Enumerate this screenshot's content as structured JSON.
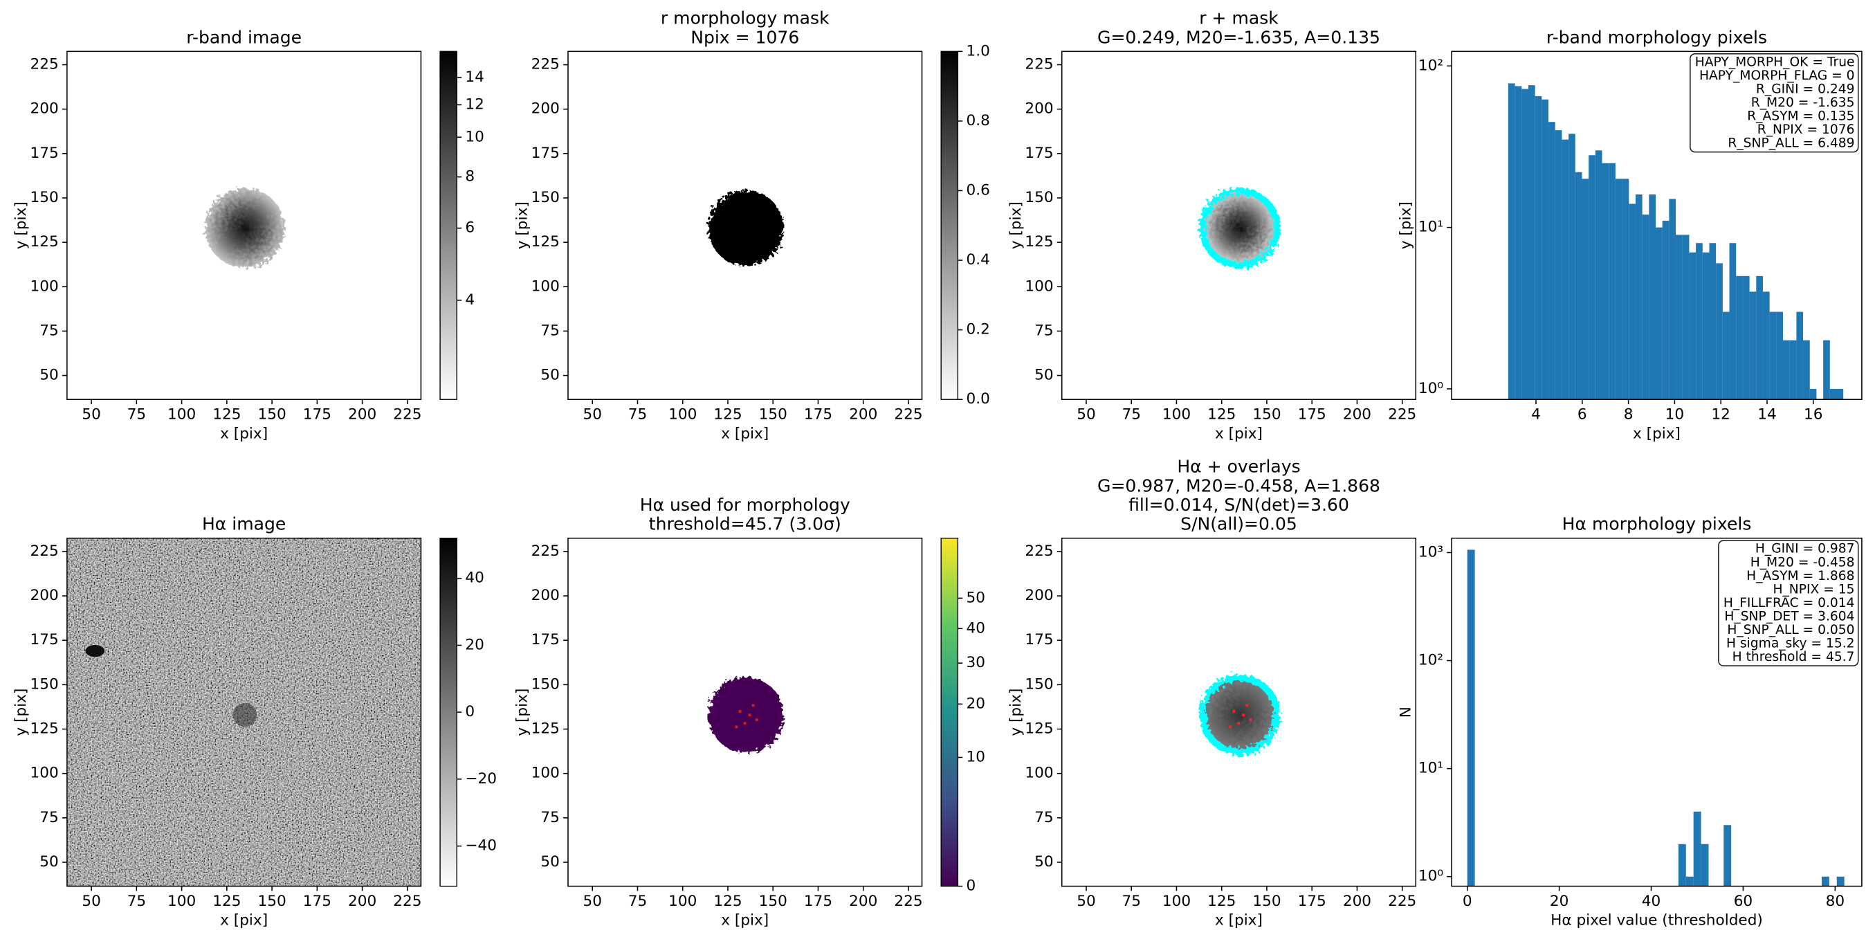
{
  "chart_data": [
    {
      "type": "image",
      "title": [
        "r-band image"
      ],
      "xlabel": "x [pix]",
      "ylabel": "y [pix]",
      "xlim": [
        36.5,
        232.5
      ],
      "ylim": [
        36.5,
        232.5
      ],
      "xticks": [
        50,
        75,
        100,
        125,
        150,
        175,
        200,
        225
      ],
      "yticks": [
        50,
        75,
        100,
        125,
        150,
        175,
        200,
        225
      ],
      "cmap": "gray_r",
      "colorbar": {
        "scale": "log",
        "lim": [
          2.29,
          16.2
        ],
        "ticks": [
          4,
          6,
          8,
          10,
          12,
          14
        ]
      }
    },
    {
      "type": "image",
      "title": [
        "r morphology mask",
        "Npix = 1076"
      ],
      "xlabel": "x [pix]",
      "ylabel": "y [pix]",
      "xlim": [
        36.5,
        232.5
      ],
      "ylim": [
        36.5,
        232.5
      ],
      "xticks": [
        50,
        75,
        100,
        125,
        150,
        175,
        200,
        225
      ],
      "yticks": [
        50,
        75,
        100,
        125,
        150,
        175,
        200,
        225
      ],
      "cmap": "gray_r",
      "colorbar": {
        "scale": "linear",
        "lim": [
          0,
          1
        ],
        "ticks": [
          {
            "value": 0,
            "label": "0.0"
          },
          {
            "value": 0.2,
            "label": "0.2"
          },
          {
            "value": 0.4,
            "label": "0.4"
          },
          {
            "value": 0.6,
            "label": "0.6"
          },
          {
            "value": 0.8,
            "label": "0.8"
          },
          {
            "value": 1,
            "label": "1.0"
          }
        ]
      }
    },
    {
      "type": "image",
      "title": [
        "r + mask",
        "G=0.249, M20=-1.635, A=0.135"
      ],
      "xlabel": "x [pix]",
      "ylabel": "y [pix]",
      "xlim": [
        36.5,
        232.5
      ],
      "ylim": [
        36.5,
        232.5
      ],
      "xticks": [
        50,
        75,
        100,
        125,
        150,
        175,
        200,
        225
      ],
      "yticks": [
        50,
        75,
        100,
        125,
        150,
        175,
        200,
        225
      ],
      "cmap": "gray_r",
      "overlay_color": "#00ffff"
    },
    {
      "type": "histogram",
      "title": [
        "r-band morphology pixels"
      ],
      "xlabel": "x [pix]",
      "ylabel": "y [pix]",
      "bins": [
        2.8,
        3.09,
        3.38,
        3.67,
        3.96,
        4.25,
        4.54,
        4.83,
        5.12,
        5.41,
        5.7,
        5.99,
        6.28,
        6.57,
        6.86,
        7.15,
        7.44,
        7.73,
        8.02,
        8.31,
        8.6,
        8.89,
        9.18,
        9.47,
        9.76,
        10.05,
        10.34,
        10.63,
        10.92,
        11.21,
        11.5,
        11.79,
        12.08,
        12.37,
        12.66,
        12.95,
        13.24,
        13.53,
        13.82,
        14.11,
        14.4,
        14.69,
        14.98,
        15.27,
        15.56,
        15.85,
        16.14,
        16.43,
        16.72,
        17.01,
        17.3
      ],
      "values": [
        78,
        75,
        72,
        76,
        65,
        62,
        45,
        40,
        35,
        38,
        22,
        20,
        28,
        30,
        25,
        25,
        20,
        20,
        14,
        16,
        12,
        16,
        10,
        11,
        15,
        9,
        9,
        7,
        8,
        7,
        8,
        6,
        3,
        8,
        5,
        5,
        4,
        5,
        4,
        3,
        3,
        2,
        2,
        3,
        2,
        1,
        0,
        2,
        1,
        1
      ],
      "color": "#1f77b4",
      "log_y": true,
      "xlim": [
        0.35,
        18.1
      ],
      "ylim": [
        0.86,
        123
      ],
      "xticks": [
        4,
        6,
        8,
        10,
        12,
        14,
        16
      ],
      "yticks": [
        {
          "value": 1,
          "label": "10⁰"
        },
        {
          "value": 10,
          "label": "10¹"
        },
        {
          "value": 100,
          "label": "10²"
        }
      ],
      "annotation_lines": [
        "HAPY_MORPH_OK = True",
        "HAPY_MORPH_FLAG = 0",
        "R_GINI = 0.249",
        "R_M20 = -1.635",
        "R_ASYM = 0.135",
        "R_NPIX = 1076",
        "R_SNP_ALL = 6.489"
      ]
    },
    {
      "type": "image",
      "title": [
        "Hα image"
      ],
      "xlabel": "x [pix]",
      "ylabel": "y [pix]",
      "xlim": [
        36.5,
        232.5
      ],
      "ylim": [
        36.5,
        232.5
      ],
      "xticks": [
        50,
        75,
        100,
        125,
        150,
        175,
        200,
        225
      ],
      "yticks": [
        50,
        75,
        100,
        125,
        150,
        175,
        200,
        225
      ],
      "cmap": "gray_r",
      "colorbar": {
        "scale": "linear",
        "lim": [
          -52,
          52
        ],
        "ticks": [
          {
            "value": -40,
            "label": "−40"
          },
          {
            "value": -20,
            "label": "−20"
          },
          0,
          20,
          40
        ]
      }
    },
    {
      "type": "image",
      "title": [
        "Hα used for morphology",
        "threshold=45.7 (3.0σ)"
      ],
      "xlabel": "x [pix]",
      "ylabel": "y [pix]",
      "xlim": [
        36.5,
        232.5
      ],
      "ylim": [
        36.5,
        232.5
      ],
      "xticks": [
        50,
        75,
        100,
        125,
        150,
        175,
        200,
        225
      ],
      "yticks": [
        50,
        75,
        100,
        125,
        150,
        175,
        200,
        225
      ],
      "cmap": "viridis",
      "colorbar": {
        "scale": "sqrt",
        "lim": [
          0,
          73
        ],
        "ticks": [
          0,
          10,
          20,
          30,
          40,
          50
        ]
      }
    },
    {
      "type": "image",
      "title": [
        "Hα + overlays",
        "G=0.987, M20=-0.458, A=1.868",
        "fill=0.014, S/N(det)=3.60",
        "S/N(all)=0.05"
      ],
      "xlabel": "x [pix]",
      "ylabel": "y [pix]",
      "xlim": [
        36.5,
        232.5
      ],
      "ylim": [
        36.5,
        232.5
      ],
      "xticks": [
        50,
        75,
        100,
        125,
        150,
        175,
        200,
        225
      ],
      "yticks": [
        50,
        75,
        100,
        125,
        150,
        175,
        200,
        225
      ],
      "cmap": "gray_r",
      "overlay_color": "#00ffff"
    },
    {
      "type": "histogram",
      "title": [
        "Hα morphology pixels"
      ],
      "xlabel": "Hα pixel value (thresholded)",
      "ylabel": "N",
      "bins": [
        0,
        1.64,
        3.28,
        4.92,
        6.56,
        8.2,
        9.84,
        11.48,
        13.12,
        14.76,
        16.4,
        18.04,
        19.68,
        21.32,
        22.96,
        24.6,
        26.24,
        27.88,
        29.52,
        31.16,
        32.8,
        34.44,
        36.08,
        37.72,
        39.36,
        41,
        42.64,
        44.28,
        45.92,
        47.56,
        49.2,
        50.84,
        52.48,
        54.12,
        55.76,
        57.4,
        59.04,
        60.68,
        62.32,
        63.96,
        65.6,
        67.24,
        68.88,
        70.52,
        72.16,
        73.8,
        75.44,
        77.08,
        78.72,
        80.36,
        82
      ],
      "values": [
        1062,
        0,
        0,
        0,
        0,
        0,
        0,
        0,
        0,
        0,
        0,
        0,
        0,
        0,
        0,
        0,
        0,
        0,
        0,
        0,
        0,
        0,
        0,
        0,
        0,
        0,
        0,
        0,
        2,
        1,
        4,
        2,
        0,
        0,
        3,
        0,
        0,
        0,
        0,
        0,
        0,
        0,
        0,
        0,
        0,
        0,
        0,
        1,
        0,
        1
      ],
      "color": "#1f77b4",
      "log_y": true,
      "xlim": [
        -3.4,
        85.8
      ],
      "ylim": [
        0.815,
        1359
      ],
      "xticks": [
        0,
        20,
        40,
        60,
        80
      ],
      "yticks": [
        {
          "value": 1,
          "label": "10⁰"
        },
        {
          "value": 10,
          "label": "10¹"
        },
        {
          "value": 100,
          "label": "10²"
        },
        {
          "value": 1000,
          "label": "10³"
        }
      ],
      "annotation_lines": [
        "H_GINI = 0.987",
        "H_M20 = -0.458",
        "H_ASYM = 1.868",
        "H_NPIX = 15",
        "H_FILLFRAC = 0.014",
        "H_SNP_DET = 3.604",
        "H_SNP_ALL = 0.050",
        "H sigma_sky = 15.2",
        "H threshold = 45.7"
      ]
    }
  ]
}
